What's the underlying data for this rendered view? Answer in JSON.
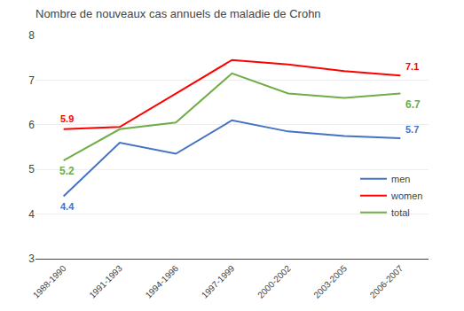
{
  "chart_data": {
    "type": "line",
    "title": "Nombre de nouveaux cas annuels de maladie de Crohn",
    "categories": [
      "1988-1990",
      "1991-1993",
      "1994-1996",
      "1997-1999",
      "2000-2002",
      "2003-2005",
      "2006-2007"
    ],
    "series": [
      {
        "name": "men",
        "color": "#4472C4",
        "values": [
          4.4,
          5.6,
          5.35,
          6.1,
          5.85,
          5.75,
          5.7
        ],
        "value_labels": [
          "4.4",
          null,
          null,
          null,
          null,
          null,
          "5.7"
        ]
      },
      {
        "name": "women",
        "color": "#FF0000",
        "values": [
          5.9,
          5.95,
          6.7,
          7.45,
          7.35,
          7.2,
          7.1
        ],
        "value_labels": [
          "5.9",
          null,
          null,
          null,
          null,
          null,
          "7.1"
        ]
      },
      {
        "name": "total",
        "color": "#70AD47",
        "values": [
          5.2,
          5.9,
          6.05,
          7.15,
          6.7,
          6.6,
          6.7
        ],
        "value_labels": [
          "5.2",
          null,
          null,
          null,
          null,
          null,
          "6.7"
        ]
      }
    ],
    "ylim": [
      3,
      8
    ],
    "yticks": [
      3,
      4,
      5,
      6,
      7,
      8
    ],
    "grid": true,
    "legend": "lower right"
  }
}
